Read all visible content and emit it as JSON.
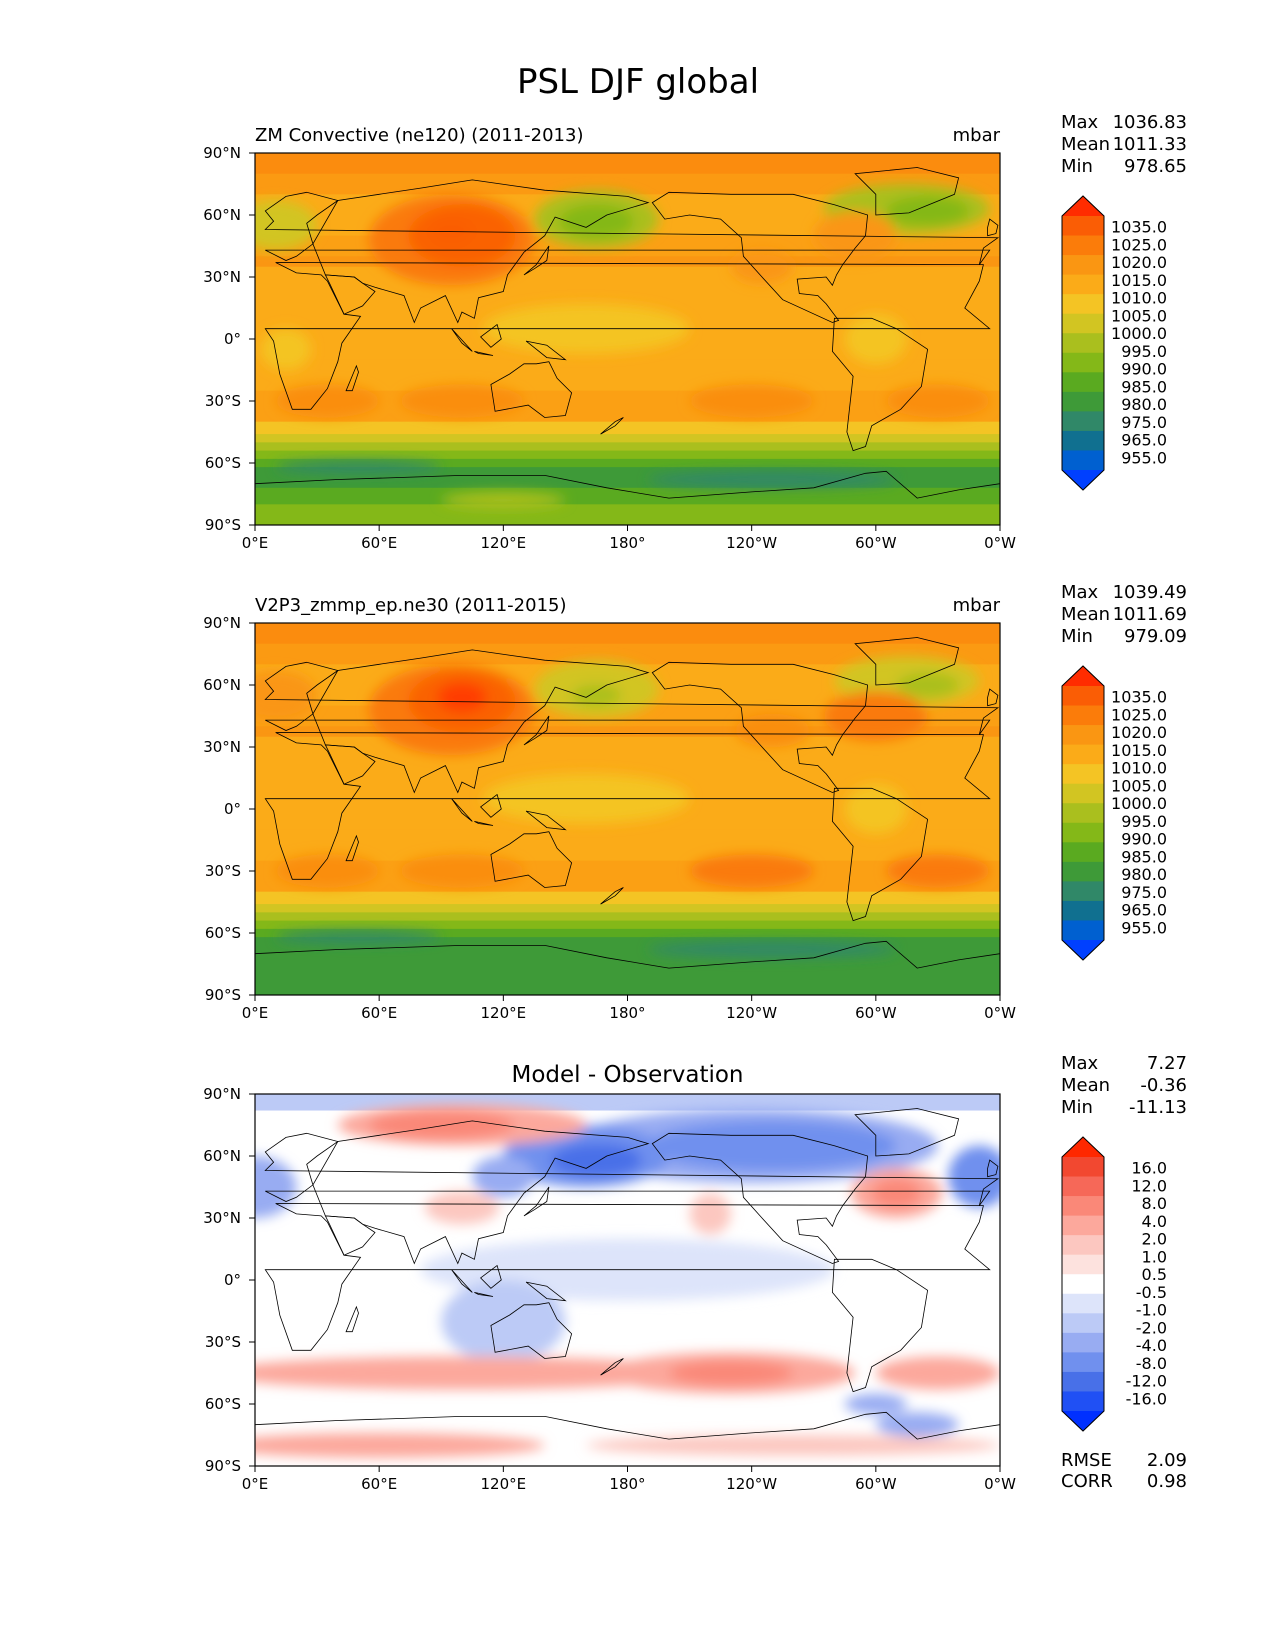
{
  "page": {
    "title": "PSL DJF global"
  },
  "axes": {
    "lon_ticks": [
      "0°E",
      "60°E",
      "120°E",
      "180°",
      "120°W",
      "60°W",
      "0°W"
    ],
    "lat_ticks": [
      "90°N",
      "60°N",
      "30°N",
      "0°",
      "30°S",
      "60°S",
      "90°S"
    ]
  },
  "colors": {
    "land_outline": "#000000",
    "psl_palette": [
      "#0040ff",
      "#0060d0",
      "#107090",
      "#308868",
      "#3e9a38",
      "#5aaa20",
      "#84b818",
      "#aabf1e",
      "#d2c522",
      "#f4c424",
      "#fbab18",
      "#fa9612",
      "#fb7c0a",
      "#fa5d05",
      "#ff2c00"
    ],
    "diff_palette": [
      "#0030ff",
      "#2050f4",
      "#4870e8",
      "#7090ee",
      "#98acf2",
      "#bccaf6",
      "#dde4fa",
      "#ffffff",
      "#fde2de",
      "#fcc7c0",
      "#fca89c",
      "#fa8878",
      "#f66858",
      "#f24830",
      "#ff2800"
    ]
  },
  "chart_data": [
    {
      "type": "heatmap",
      "title": "ZM Convective (ne120) (2011-2013)",
      "units": "mbar",
      "stats": {
        "max_label": "Max",
        "max": "1036.83",
        "mean_label": "Mean",
        "mean": "1011.33",
        "min_label": "Min",
        "min": "978.65"
      },
      "levels": [
        "1035.0",
        "1025.0",
        "1020.0",
        "1015.0",
        "1010.0",
        "1005.0",
        "1000.0",
        "995.0",
        "990.0",
        "985.0",
        "980.0",
        "975.0",
        "965.0",
        "955.0"
      ],
      "xlim": [
        0,
        360
      ],
      "ylim": [
        -90,
        90
      ]
    },
    {
      "type": "heatmap",
      "title": "V2P3_zmmp_ep.ne30 (2011-2015)",
      "units": "mbar",
      "stats": {
        "max_label": "Max",
        "max": "1039.49",
        "mean_label": "Mean",
        "mean": "1011.69",
        "min_label": "Min",
        "min": "979.09"
      },
      "levels": [
        "1035.0",
        "1025.0",
        "1020.0",
        "1015.0",
        "1010.0",
        "1005.0",
        "1000.0",
        "995.0",
        "990.0",
        "985.0",
        "980.0",
        "975.0",
        "965.0",
        "955.0"
      ],
      "xlim": [
        0,
        360
      ],
      "ylim": [
        -90,
        90
      ]
    },
    {
      "type": "heatmap",
      "title": "Model - Observation",
      "units": "",
      "stats": {
        "max_label": "Max",
        "max": "7.27",
        "mean_label": "Mean",
        "mean": "-0.36",
        "min_label": "Min",
        "min": "-11.13"
      },
      "levels": [
        "16.0",
        "12.0",
        "8.0",
        "4.0",
        "2.0",
        "1.0",
        "0.5",
        "-0.5",
        "-1.0",
        "-2.0",
        "-4.0",
        "-8.0",
        "-12.0",
        "-16.0"
      ],
      "metrics": {
        "rmse_label": "RMSE",
        "rmse": "2.09",
        "corr_label": "CORR",
        "corr": "0.98"
      },
      "xlim": [
        0,
        360
      ],
      "ylim": [
        -90,
        90
      ]
    }
  ]
}
